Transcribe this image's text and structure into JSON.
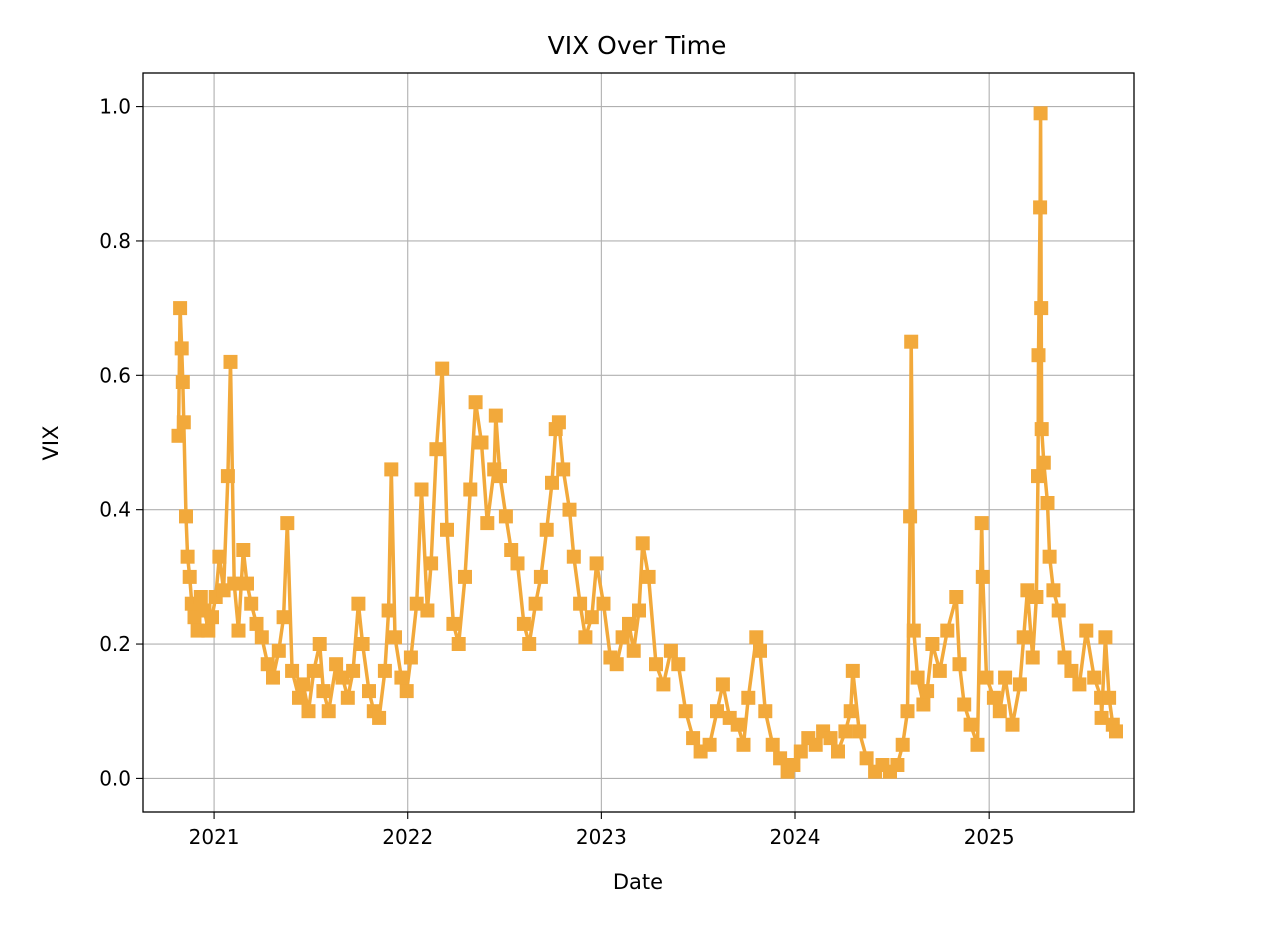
{
  "chart_data": {
    "type": "line",
    "title": "VIX Over Time",
    "xlabel": "Date",
    "ylabel": "VIX",
    "xlim": [
      "2020-08-20",
      "2025-10-01"
    ],
    "ylim": [
      -0.05,
      1.05
    ],
    "x_ticks": [
      "2021",
      "2022",
      "2023",
      "2024",
      "2025"
    ],
    "y_ticks": [
      "0.0",
      "0.2",
      "0.4",
      "0.6",
      "0.8",
      "1.0"
    ],
    "y_tick_values": [
      0.0,
      0.2,
      0.4,
      0.6,
      0.8,
      1.0
    ],
    "grid": true,
    "legend": "none",
    "series": [
      {
        "color": "#f2a93b",
        "marker": "square",
        "x": [
          "2020-10-26",
          "2020-10-29",
          "2020-11-01",
          "2020-11-03",
          "2020-11-05",
          "2020-11-09",
          "2020-11-12",
          "2020-11-16",
          "2020-11-20",
          "2020-11-25",
          "2020-12-01",
          "2020-12-07",
          "2020-12-14",
          "2020-12-21",
          "2020-12-28",
          "2021-01-04",
          "2021-01-11",
          "2021-01-19",
          "2021-01-27",
          "2021-02-01",
          "2021-02-08",
          "2021-02-16",
          "2021-02-25",
          "2021-03-04",
          "2021-03-12",
          "2021-03-22",
          "2021-04-01",
          "2021-04-12",
          "2021-04-22",
          "2021-05-03",
          "2021-05-12",
          "2021-05-19",
          "2021-05-28",
          "2021-06-10",
          "2021-06-18",
          "2021-06-28",
          "2021-07-08",
          "2021-07-19",
          "2021-07-26",
          "2021-08-05",
          "2021-08-19",
          "2021-08-31",
          "2021-09-10",
          "2021-09-20",
          "2021-09-30",
          "2021-10-08",
          "2021-10-20",
          "2021-10-29",
          "2021-11-08",
          "2021-11-19",
          "2021-11-26",
          "2021-12-01",
          "2021-12-08",
          "2021-12-20",
          "2021-12-30",
          "2022-01-07",
          "2022-01-18",
          "2022-01-27",
          "2022-02-07",
          "2022-02-14",
          "2022-02-24",
          "2022-03-07",
          "2022-03-16",
          "2022-03-28",
          "2022-04-07",
          "2022-04-19",
          "2022-04-29",
          "2022-05-09",
          "2022-05-20",
          "2022-05-31",
          "2022-06-13",
          "2022-06-16",
          "2022-06-24",
          "2022-07-05",
          "2022-07-15",
          "2022-07-27",
          "2022-08-08",
          "2022-08-18",
          "2022-08-30",
          "2022-09-09",
          "2022-09-20",
          "2022-09-30",
          "2022-10-07",
          "2022-10-13",
          "2022-10-21",
          "2022-11-02",
          "2022-11-10",
          "2022-11-22",
          "2022-12-02",
          "2022-12-14",
          "2022-12-23",
          "2023-01-05",
          "2023-01-18",
          "2023-01-30",
          "2023-02-10",
          "2023-02-22",
          "2023-03-03",
          "2023-03-13",
          "2023-03-20",
          "2023-03-31",
          "2023-04-14",
          "2023-04-28",
          "2023-05-12",
          "2023-05-26",
          "2023-06-09",
          "2023-06-23",
          "2023-07-07",
          "2023-07-24",
          "2023-08-07",
          "2023-08-18",
          "2023-08-31",
          "2023-09-15",
          "2023-09-26",
          "2023-10-05",
          "2023-10-20",
          "2023-10-27",
          "2023-11-06",
          "2023-11-20",
          "2023-12-04",
          "2023-12-18",
          "2023-12-29",
          "2024-01-12",
          "2024-01-26",
          "2024-02-09",
          "2024-02-23",
          "2024-03-08",
          "2024-03-22",
          "2024-04-05",
          "2024-04-15",
          "2024-04-19",
          "2024-05-01",
          "2024-05-15",
          "2024-05-31",
          "2024-06-14",
          "2024-06-28",
          "2024-07-12",
          "2024-07-22",
          "2024-07-31",
          "2024-08-05",
          "2024-08-07",
          "2024-08-12",
          "2024-08-19",
          "2024-08-30",
          "2024-09-06",
          "2024-09-16",
          "2024-09-30",
          "2024-10-14",
          "2024-10-31",
          "2024-11-06",
          "2024-11-15",
          "2024-11-27",
          "2024-12-10",
          "2024-12-18",
          "2024-12-20",
          "2024-12-27",
          "2025-01-10",
          "2025-01-21",
          "2025-01-31",
          "2025-02-14",
          "2025-02-28",
          "2025-03-07",
          "2025-03-14",
          "2025-03-24",
          "2025-03-31",
          "2025-04-03",
          "2025-04-04",
          "2025-04-07",
          "2025-04-08",
          "2025-04-09",
          "2025-04-10",
          "2025-04-14",
          "2025-04-21",
          "2025-04-25",
          "2025-05-02",
          "2025-05-12",
          "2025-05-23",
          "2025-06-05",
          "2025-06-20",
          "2025-07-03",
          "2025-07-18",
          "2025-07-31",
          "2025-08-01",
          "2025-08-08",
          "2025-08-15",
          "2025-08-22",
          "2025-08-28"
        ],
        "y": [
          0.51,
          0.7,
          0.64,
          0.59,
          0.53,
          0.39,
          0.33,
          0.3,
          0.26,
          0.24,
          0.22,
          0.27,
          0.25,
          0.22,
          0.24,
          0.27,
          0.33,
          0.28,
          0.45,
          0.62,
          0.29,
          0.22,
          0.34,
          0.29,
          0.26,
          0.23,
          0.21,
          0.17,
          0.15,
          0.19,
          0.24,
          0.38,
          0.16,
          0.12,
          0.14,
          0.1,
          0.16,
          0.2,
          0.13,
          0.1,
          0.17,
          0.15,
          0.12,
          0.16,
          0.26,
          0.2,
          0.13,
          0.1,
          0.09,
          0.16,
          0.25,
          0.46,
          0.21,
          0.15,
          0.13,
          0.18,
          0.26,
          0.43,
          0.25,
          0.32,
          0.49,
          0.61,
          0.37,
          0.23,
          0.2,
          0.3,
          0.43,
          0.56,
          0.5,
          0.38,
          0.46,
          0.54,
          0.45,
          0.39,
          0.34,
          0.32,
          0.23,
          0.2,
          0.26,
          0.3,
          0.37,
          0.44,
          0.52,
          0.53,
          0.46,
          0.4,
          0.33,
          0.26,
          0.21,
          0.24,
          0.32,
          0.26,
          0.18,
          0.17,
          0.21,
          0.23,
          0.19,
          0.25,
          0.35,
          0.3,
          0.17,
          0.14,
          0.19,
          0.17,
          0.1,
          0.06,
          0.04,
          0.05,
          0.1,
          0.14,
          0.09,
          0.08,
          0.05,
          0.12,
          0.21,
          0.19,
          0.1,
          0.05,
          0.03,
          0.01,
          0.02,
          0.04,
          0.06,
          0.05,
          0.07,
          0.06,
          0.04,
          0.07,
          0.1,
          0.16,
          0.07,
          0.03,
          0.01,
          0.02,
          0.01,
          0.02,
          0.05,
          0.1,
          0.39,
          0.65,
          0.22,
          0.15,
          0.11,
          0.13,
          0.2,
          0.16,
          0.22,
          0.27,
          0.17,
          0.11,
          0.08,
          0.05,
          0.38,
          0.3,
          0.15,
          0.12,
          0.1,
          0.15,
          0.08,
          0.14,
          0.21,
          0.28,
          0.18,
          0.27,
          0.45,
          0.63,
          0.85,
          0.99,
          0.7,
          0.52,
          0.47,
          0.41,
          0.33,
          0.28,
          0.25,
          0.18,
          0.16,
          0.14,
          0.22,
          0.15,
          0.12,
          0.09,
          0.21,
          0.12,
          0.08,
          0.07
        ]
      }
    ]
  }
}
